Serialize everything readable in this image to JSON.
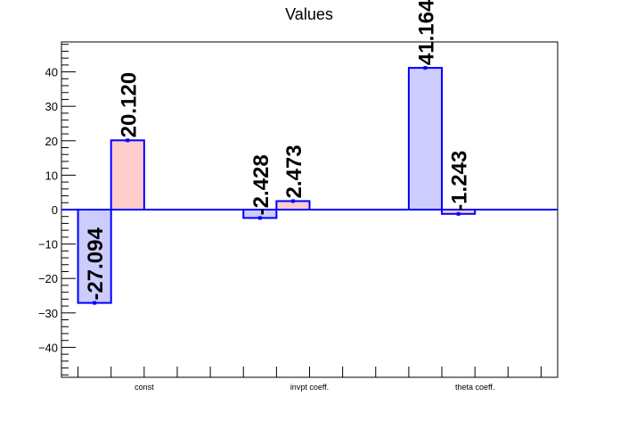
{
  "chart_data": {
    "type": "bar",
    "title": "Values",
    "xlabel": "",
    "ylabel": "",
    "ylim": [
      -48.7,
      48.7
    ],
    "yticks": [
      -40,
      -30,
      -20,
      -10,
      0,
      10,
      20,
      30,
      40
    ],
    "ytick_labels": [
      "−40",
      "−30",
      "−20",
      "−10",
      "0",
      "10",
      "20",
      "30",
      "40"
    ],
    "categories": [
      "const",
      "invpt coeff.",
      "theta coeff."
    ],
    "series": [
      {
        "values": [
          -27.094,
          -2.428,
          41.164
        ],
        "labels": [
          "-27.094",
          "-2.428",
          "41.164"
        ]
      },
      {
        "values": [
          20.12,
          2.473,
          -1.243
        ],
        "labels": [
          "20.120",
          "2.473",
          "-1.243"
        ]
      }
    ],
    "grid": false,
    "legend": "none"
  },
  "colors": {
    "series_fill": [
      "#ccccff",
      "#ffcccc"
    ],
    "bar_stroke": "#0000ff",
    "zero_line": "#0000ff",
    "axis": "#000000"
  }
}
